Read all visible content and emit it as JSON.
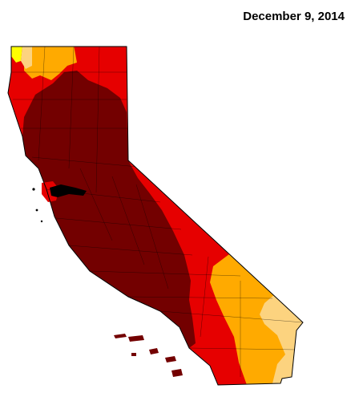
{
  "map": {
    "date_label": "December 9, 2014"
  },
  "colors": {
    "exceptional_drought": "#730000",
    "extreme_drought": "#e60000",
    "severe_drought": "#ffaa00",
    "moderate_drought": "#fcd37f",
    "abnormally_dry": "#ffff00",
    "county_lines": "#000000",
    "background": "#ffffff"
  }
}
